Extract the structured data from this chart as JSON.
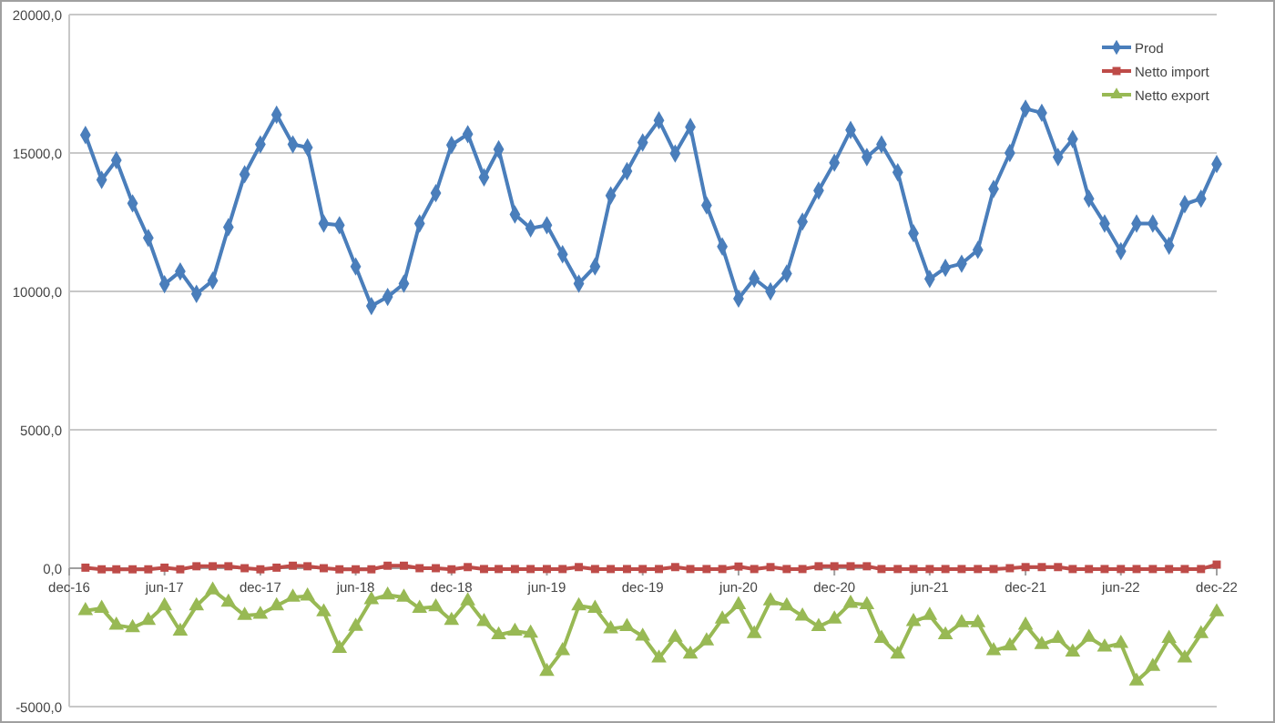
{
  "chart_data": {
    "type": "line",
    "x": [
      "2017-01",
      "2017-02",
      "2017-03",
      "2017-04",
      "2017-05",
      "2017-06",
      "2017-07",
      "2017-08",
      "2017-09",
      "2017-10",
      "2017-11",
      "2017-12",
      "2018-01",
      "2018-02",
      "2018-03",
      "2018-04",
      "2018-05",
      "2018-06",
      "2018-07",
      "2018-08",
      "2018-09",
      "2018-10",
      "2018-11",
      "2018-12",
      "2019-01",
      "2019-02",
      "2019-03",
      "2019-04",
      "2019-05",
      "2019-06",
      "2019-07",
      "2019-08",
      "2019-09",
      "2019-10",
      "2019-11",
      "2019-12",
      "2020-01",
      "2020-02",
      "2020-03",
      "2020-04",
      "2020-05",
      "2020-06",
      "2020-07",
      "2020-08",
      "2020-09",
      "2020-10",
      "2020-11",
      "2020-12",
      "2021-01",
      "2021-02",
      "2021-03",
      "2021-04",
      "2021-05",
      "2021-06",
      "2021-07",
      "2021-08",
      "2021-09",
      "2021-10",
      "2021-11",
      "2021-12",
      "2022-01",
      "2022-02",
      "2022-03",
      "2022-04",
      "2022-05",
      "2022-06",
      "2022-07",
      "2022-08",
      "2022-09",
      "2022-10",
      "2022-11",
      "2022-12"
    ],
    "series": [
      {
        "name": "Prod",
        "color": "#4a7ebb",
        "marker": "diamond",
        "values": [
          15650,
          14030,
          14740,
          13180,
          11930,
          10260,
          10720,
          9910,
          10390,
          12320,
          14230,
          15310,
          16380,
          15310,
          15200,
          12450,
          12390,
          10900,
          9470,
          9800,
          10280,
          12450,
          13550,
          15290,
          15680,
          14120,
          15130,
          12780,
          12280,
          12390,
          11340,
          10280,
          10900,
          13460,
          14340,
          15380,
          16180,
          14980,
          15940,
          13110,
          11620,
          9740,
          10460,
          10000,
          10640,
          12520,
          13640,
          14650,
          15830,
          14850,
          15310,
          14300,
          12100,
          10450,
          10850,
          11000,
          11500,
          13700,
          15000,
          16600,
          16450,
          14850,
          15500,
          13350,
          12450,
          11450,
          12450,
          12450,
          11650,
          13150,
          13350,
          14600
        ]
      },
      {
        "name": "Netto import",
        "color": "#be4b48",
        "marker": "square",
        "values": [
          20,
          -40,
          -40,
          -40,
          -40,
          20,
          -40,
          70,
          70,
          70,
          0,
          -40,
          20,
          90,
          70,
          0,
          -40,
          -40,
          -40,
          90,
          90,
          0,
          0,
          -40,
          40,
          -30,
          -30,
          -30,
          -30,
          -30,
          -30,
          40,
          -30,
          -30,
          -30,
          -30,
          -30,
          40,
          -30,
          -30,
          -30,
          60,
          -30,
          40,
          -30,
          -30,
          70,
          70,
          70,
          70,
          -30,
          -30,
          -30,
          -30,
          -30,
          -30,
          -30,
          -30,
          0,
          40,
          40,
          40,
          -30,
          -30,
          -30,
          -30,
          -30,
          -30,
          -30,
          -30,
          -30,
          130
        ]
      },
      {
        "name": "Netto export",
        "color": "#98b954",
        "marker": "triangle",
        "values": [
          -1535,
          -1450,
          -2060,
          -2150,
          -1890,
          -1360,
          -2280,
          -1360,
          -790,
          -1230,
          -1710,
          -1670,
          -1360,
          -1050,
          -1010,
          -1580,
          -2900,
          -2100,
          -1140,
          -970,
          -1050,
          -1450,
          -1400,
          -1890,
          -1180,
          -1930,
          -2410,
          -2280,
          -2350,
          -3730,
          -2980,
          -1360,
          -1450,
          -2190,
          -2110,
          -2460,
          -3250,
          -2500,
          -3110,
          -2630,
          -1840,
          -1320,
          -2370,
          -1180,
          -1360,
          -1730,
          -2110,
          -1840,
          -1270,
          -1320,
          -2540,
          -3110,
          -1930,
          -1710,
          -2410,
          -1970,
          -1970,
          -2980,
          -2810,
          -2060,
          -2760,
          -2540,
          -3030,
          -2500,
          -2850,
          -2720,
          -4080,
          -3550,
          -2540,
          -3250,
          -2370,
          -1580
        ]
      }
    ],
    "xlim": [
      "2016-12",
      "2022-12"
    ],
    "xticks": [
      {
        "value": "2016-12",
        "label": "dec-16"
      },
      {
        "value": "2017-06",
        "label": "jun-17"
      },
      {
        "value": "2017-12",
        "label": "dec-17"
      },
      {
        "value": "2018-06",
        "label": "jun-18"
      },
      {
        "value": "2018-12",
        "label": "dec-18"
      },
      {
        "value": "2019-06",
        "label": "jun-19"
      },
      {
        "value": "2019-12",
        "label": "dec-19"
      },
      {
        "value": "2020-06",
        "label": "jun-20"
      },
      {
        "value": "2020-12",
        "label": "dec-20"
      },
      {
        "value": "2021-06",
        "label": "jun-21"
      },
      {
        "value": "2021-12",
        "label": "dec-21"
      },
      {
        "value": "2022-06",
        "label": "jun-22"
      },
      {
        "value": "2022-12",
        "label": "dec-22"
      }
    ],
    "ylim": [
      -5000,
      20000
    ],
    "yticks": [
      {
        "value": -5000,
        "label": "-5000,0"
      },
      {
        "value": 0,
        "label": "0,0"
      },
      {
        "value": 5000,
        "label": "5000,0"
      },
      {
        "value": 10000,
        "label": "10000,0"
      },
      {
        "value": 15000,
        "label": "15000,0"
      },
      {
        "value": 20000,
        "label": "20000,0"
      }
    ],
    "grid": "y",
    "legend": "top right",
    "line_style": "solid"
  }
}
